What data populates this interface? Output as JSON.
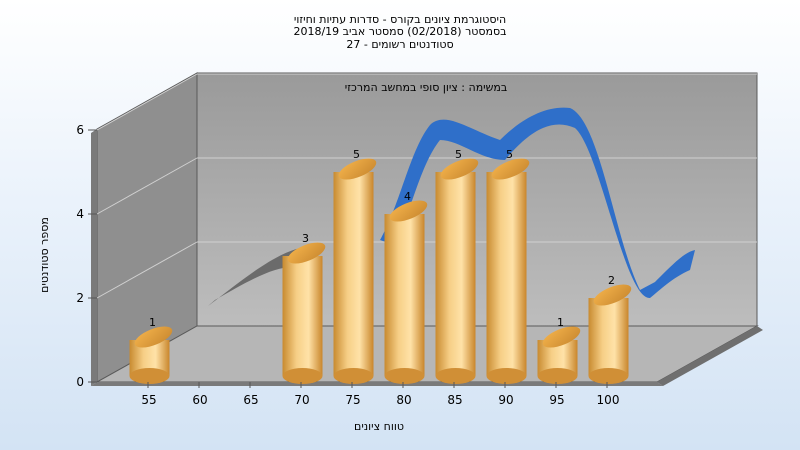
{
  "chart_data": {
    "type": "bar",
    "title_lines": [
      "היסטוגרמת ציונים בקורס - סדרות עתיות וחיזוי",
      "בסמסטר  (02/2018)  סמסטר אביב 2018/19",
      "סטודנטים רשומים - 27"
    ],
    "annotation": "במשימה : ציון סופי במחשב המרכזי",
    "xlabel": "טווח ציונים",
    "ylabel": "מספר סטודנטים",
    "x_ticks": [
      "55",
      "60",
      "65",
      "70",
      "75",
      "80",
      "85",
      "90",
      "95",
      "100"
    ],
    "y_ticks": [
      "0",
      "2",
      "4",
      "6"
    ],
    "ylim": [
      0,
      6
    ],
    "bars": [
      {
        "x": "55",
        "value": 1
      },
      {
        "x": "70",
        "value": 3
      },
      {
        "x": "75",
        "value": 5
      },
      {
        "x": "80",
        "value": 4
      },
      {
        "x": "85",
        "value": 5
      },
      {
        "x": "90",
        "value": 5
      },
      {
        "x": "95",
        "value": 1
      },
      {
        "x": "100",
        "value": 2
      }
    ],
    "colors": {
      "bar": "#e8a84a",
      "ribbon": "#2f6fc9",
      "ribbon_shadow": "#666666",
      "wall": "#9e9e9e",
      "floor": "#b8b8b8"
    }
  }
}
